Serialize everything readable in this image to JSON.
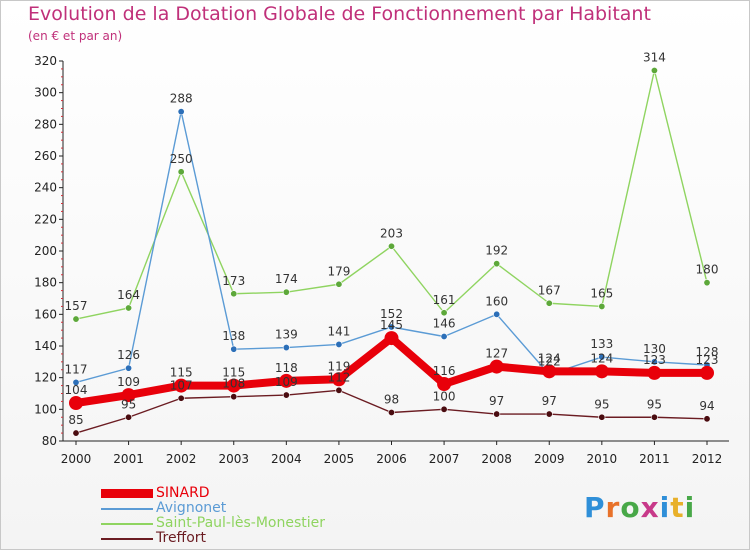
{
  "header": {
    "title": "Evolution de la Dotation Globale de Fonctionnement par Habitant",
    "subtitle": "(en € et par an)"
  },
  "logo": {
    "text": "Proxiti",
    "colors": [
      "#2f8fd8",
      "#e8722a",
      "#48a848",
      "#c83a8a",
      "#2f8fd8",
      "#e8b02a",
      "#48a848"
    ]
  },
  "chart_data": {
    "type": "line",
    "title": "Evolution de la Dotation Globale de Fonctionnement par Habitant",
    "subtitle": "(en € et par an)",
    "x": [
      "2000",
      "2001",
      "2002",
      "2003",
      "2004",
      "2005",
      "2006",
      "2007",
      "2008",
      "2009",
      "2010",
      "2011",
      "2012"
    ],
    "ylim": [
      80,
      320
    ],
    "yticks": [
      80,
      100,
      120,
      140,
      160,
      180,
      200,
      220,
      240,
      260,
      280,
      300,
      320
    ],
    "grid": false,
    "legend": "bottom-left",
    "series": [
      {
        "name": "SINARD",
        "color": "#e8000a",
        "values": [
          104,
          109,
          115,
          115,
          118,
          119,
          145,
          116,
          127,
          124,
          124,
          123,
          123
        ]
      },
      {
        "name": "Avignonet",
        "color": "#5b9bd5",
        "values": [
          117,
          126,
          288,
          138,
          139,
          141,
          152,
          146,
          160,
          122,
          133,
          130,
          128
        ]
      },
      {
        "name": "Saint-Paul-lès-Monestier",
        "color": "#8fd460",
        "values": [
          157,
          164,
          250,
          173,
          174,
          179,
          203,
          161,
          192,
          167,
          165,
          314,
          180
        ]
      },
      {
        "name": "Treffort",
        "color": "#6b1c22",
        "values": [
          85,
          95,
          107,
          108,
          109,
          112,
          98,
          100,
          97,
          97,
          95,
          95,
          94
        ]
      }
    ]
  }
}
